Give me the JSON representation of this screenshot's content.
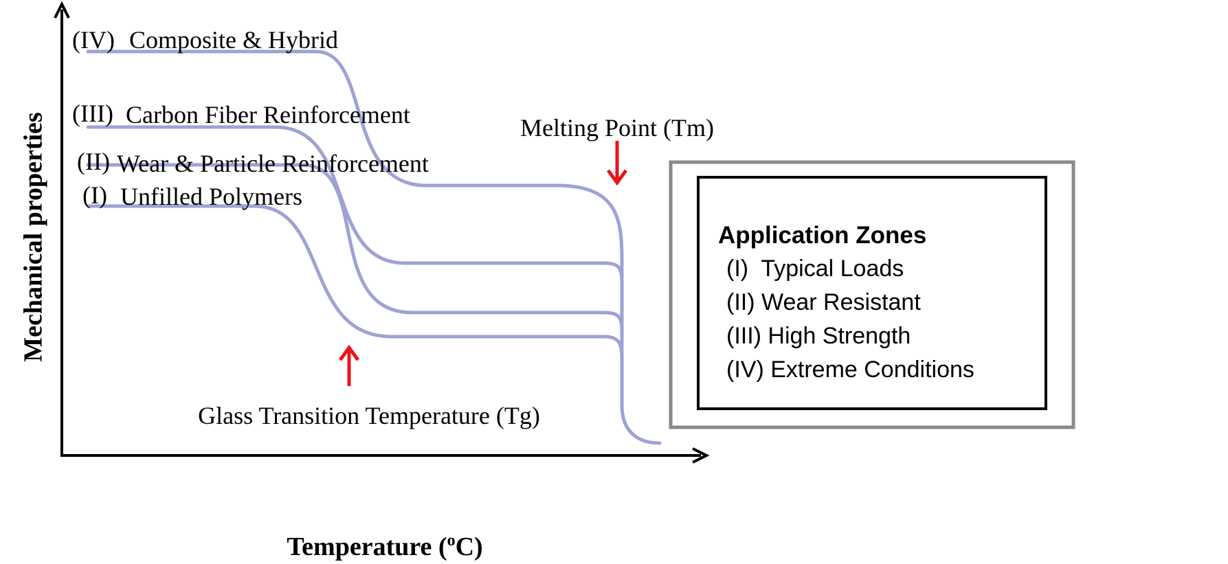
{
  "y_axis_label": "Mechanical properties",
  "x_axis_label": {
    "before": "Temperature (",
    "superscript": "o",
    "after": "C)"
  },
  "curves": [
    {
      "numeral": "(I)",
      "label": "Unfilled Polymers"
    },
    {
      "numeral": "(II)",
      "label": "Wear & Particle Reinforcement"
    },
    {
      "numeral": "(III)",
      "label": "Carbon Fiber Reinforcement"
    },
    {
      "numeral": "(IV)",
      "label": "Composite & Hybrid"
    }
  ],
  "annotations": {
    "melting_point": "Melting Point (Tm)",
    "glass_transition": "Glass Transition Temperature (Tg)"
  },
  "application_zones": {
    "title": "Application Zones",
    "items": [
      "(I)  Typical Loads",
      "(II) Wear Resistant",
      "(III) High Strength",
      "(IV) Extreme Conditions"
    ]
  }
}
